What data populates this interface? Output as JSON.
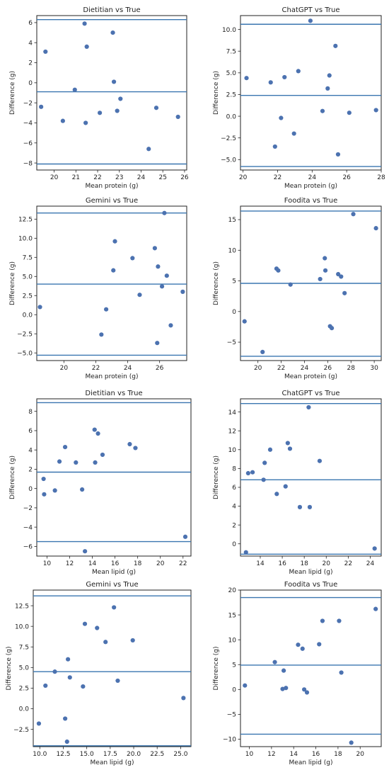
{
  "chart_data": [
    {
      "type": "scatter",
      "title": "Dietitian vs True",
      "xlabel": "Mean protein (g)",
      "ylabel": "Difference (g)",
      "xlim": [
        19.2,
        26.1
      ],
      "ylim": [
        -8.7,
        6.7
      ],
      "xticks": [
        {
          "v": 20,
          "label": "20"
        },
        {
          "v": 21,
          "label": "21"
        },
        {
          "v": 22,
          "label": "22"
        },
        {
          "v": 23,
          "label": "23"
        },
        {
          "v": 24,
          "label": "24"
        },
        {
          "v": 25,
          "label": "25"
        },
        {
          "v": 26,
          "label": "26"
        }
      ],
      "yticks": [
        {
          "v": -8,
          "label": "−8"
        },
        {
          "v": -6,
          "label": "−6"
        },
        {
          "v": -4,
          "label": "−4"
        },
        {
          "v": -2,
          "label": "−2"
        },
        {
          "v": 0,
          "label": "0"
        },
        {
          "v": 2,
          "label": "2"
        },
        {
          "v": 4,
          "label": "4"
        },
        {
          "v": 6,
          "label": "6"
        }
      ],
      "hlines": [
        6.3,
        -0.9,
        -8.1
      ],
      "x": [
        19.4,
        19.6,
        20.4,
        20.95,
        21.4,
        21.45,
        21.5,
        22.1,
        22.7,
        22.75,
        22.9,
        23.05,
        24.35,
        24.7,
        25.7
      ],
      "y": [
        -2.4,
        3.1,
        -3.8,
        -0.7,
        5.9,
        -4.0,
        3.6,
        -3.0,
        5.0,
        0.1,
        -2.8,
        -1.6,
        -6.6,
        -2.5,
        -3.4
      ]
    },
    {
      "type": "scatter",
      "title": "ChatGPT vs True",
      "xlabel": "Mean protein (g)",
      "ylabel": "Difference (g)",
      "xlim": [
        19.85,
        28.0
      ],
      "ylim": [
        -6.2,
        11.6
      ],
      "xticks": [
        {
          "v": 20,
          "label": "20"
        },
        {
          "v": 22,
          "label": "22"
        },
        {
          "v": 24,
          "label": "24"
        },
        {
          "v": 26,
          "label": "26"
        },
        {
          "v": 28,
          "label": "28"
        }
      ],
      "yticks": [
        {
          "v": -5,
          "label": "−5.0"
        },
        {
          "v": -2.5,
          "label": "−2.5"
        },
        {
          "v": 0,
          "label": "0.0"
        },
        {
          "v": 2.5,
          "label": "2.5"
        },
        {
          "v": 5,
          "label": "5.0"
        },
        {
          "v": 7.5,
          "label": "7.5"
        },
        {
          "v": 10,
          "label": "10.0"
        }
      ],
      "hlines": [
        10.6,
        2.4,
        -5.8
      ],
      "x": [
        20.2,
        21.6,
        21.85,
        22.2,
        22.4,
        22.95,
        23.2,
        23.9,
        24.6,
        24.9,
        25.0,
        25.35,
        25.5,
        26.15,
        27.7
      ],
      "y": [
        4.4,
        3.9,
        -3.5,
        -0.2,
        4.5,
        -2.0,
        5.2,
        11.0,
        0.6,
        3.2,
        4.7,
        8.1,
        -4.4,
        0.4,
        0.7
      ]
    },
    {
      "type": "scatter",
      "title": "Gemini vs True",
      "xlabel": "Mean protein (g)",
      "ylabel": "Difference (g)",
      "xlim": [
        18.3,
        27.7
      ],
      "ylim": [
        -6.0,
        14.2
      ],
      "xticks": [
        {
          "v": 20,
          "label": "20"
        },
        {
          "v": 22,
          "label": "22"
        },
        {
          "v": 24,
          "label": "24"
        },
        {
          "v": 26,
          "label": "26"
        }
      ],
      "yticks": [
        {
          "v": -5,
          "label": "−5.0"
        },
        {
          "v": -2.5,
          "label": "−2.5"
        },
        {
          "v": 0,
          "label": "0.0"
        },
        {
          "v": 2.5,
          "label": "2.5"
        },
        {
          "v": 5,
          "label": "5.0"
        },
        {
          "v": 7.5,
          "label": "7.5"
        },
        {
          "v": 10,
          "label": "10.0"
        },
        {
          "v": 12.5,
          "label": "12.5"
        }
      ],
      "hlines": [
        13.3,
        4.0,
        -5.3
      ],
      "x": [
        18.5,
        22.35,
        22.65,
        23.1,
        23.2,
        24.3,
        24.75,
        25.7,
        25.85,
        25.9,
        26.15,
        26.3,
        26.45,
        26.7,
        27.45
      ],
      "y": [
        1.0,
        -2.6,
        0.7,
        5.8,
        9.6,
        7.4,
        2.6,
        8.7,
        -3.7,
        6.3,
        3.7,
        13.3,
        5.1,
        -1.4,
        3.0
      ]
    },
    {
      "type": "scatter",
      "title": "Foodita vs True",
      "xlabel": "Mean protein (g)",
      "ylabel": "Difference (g)",
      "xlim": [
        18.5,
        30.6
      ],
      "ylim": [
        -8.0,
        17.2
      ],
      "xticks": [
        {
          "v": 20,
          "label": "20"
        },
        {
          "v": 22,
          "label": "22"
        },
        {
          "v": 24,
          "label": "24"
        },
        {
          "v": 26,
          "label": "26"
        },
        {
          "v": 28,
          "label": "28"
        },
        {
          "v": 30,
          "label": "30"
        }
      ],
      "yticks": [
        {
          "v": -5,
          "label": "−5"
        },
        {
          "v": 0,
          "label": "0"
        },
        {
          "v": 5,
          "label": "5"
        },
        {
          "v": 10,
          "label": "10"
        },
        {
          "v": 15,
          "label": "15"
        }
      ],
      "hlines": [
        16.4,
        4.6,
        -7.3
      ],
      "x": [
        18.85,
        20.4,
        21.6,
        21.75,
        22.8,
        25.35,
        25.75,
        25.8,
        26.2,
        26.35,
        26.9,
        27.15,
        27.45,
        28.2,
        30.15
      ],
      "y": [
        -1.6,
        -6.6,
        7.0,
        6.7,
        4.4,
        5.3,
        8.7,
        6.7,
        -2.4,
        -2.7,
        6.1,
        5.7,
        3.0,
        15.9,
        13.6
      ]
    },
    {
      "type": "scatter",
      "title": "Dietitian vs True",
      "xlabel": "Mean lipid (g)",
      "ylabel": "Difference (g)",
      "xlim": [
        9.1,
        22.7
      ],
      "ylim": [
        -7.0,
        9.3
      ],
      "xticks": [
        {
          "v": 10,
          "label": "10"
        },
        {
          "v": 12,
          "label": "12"
        },
        {
          "v": 14,
          "label": "14"
        },
        {
          "v": 16,
          "label": "16"
        },
        {
          "v": 18,
          "label": "18"
        },
        {
          "v": 20,
          "label": "20"
        },
        {
          "v": 22,
          "label": "22"
        }
      ],
      "yticks": [
        {
          "v": -6,
          "label": "−6"
        },
        {
          "v": -4,
          "label": "−4"
        },
        {
          "v": -2,
          "label": "−2"
        },
        {
          "v": 0,
          "label": "0"
        },
        {
          "v": 2,
          "label": "2"
        },
        {
          "v": 4,
          "label": "4"
        },
        {
          "v": 6,
          "label": "6"
        },
        {
          "v": 8,
          "label": "8"
        }
      ],
      "hlines": [
        8.9,
        1.7,
        -5.5
      ],
      "x": [
        9.7,
        9.75,
        10.7,
        11.1,
        11.6,
        12.55,
        13.1,
        13.35,
        14.2,
        14.25,
        14.5,
        14.9,
        17.3,
        17.8,
        22.2
      ],
      "y": [
        1.0,
        -0.6,
        -0.2,
        2.8,
        4.3,
        2.7,
        -0.1,
        -6.5,
        6.1,
        2.7,
        5.7,
        3.5,
        4.6,
        4.2,
        -5.0
      ]
    },
    {
      "type": "scatter",
      "title": "ChatGPT vs True",
      "xlabel": "Mean lipid (g)",
      "ylabel": "Difference (g)",
      "xlim": [
        12.2,
        25.0
      ],
      "ylim": [
        -1.3,
        15.4
      ],
      "xticks": [
        {
          "v": 14,
          "label": "14"
        },
        {
          "v": 16,
          "label": "16"
        },
        {
          "v": 18,
          "label": "18"
        },
        {
          "v": 20,
          "label": "20"
        },
        {
          "v": 22,
          "label": "22"
        },
        {
          "v": 24,
          "label": "24"
        }
      ],
      "yticks": [
        {
          "v": 0,
          "label": "0"
        },
        {
          "v": 2,
          "label": "2"
        },
        {
          "v": 4,
          "label": "4"
        },
        {
          "v": 6,
          "label": "6"
        },
        {
          "v": 8,
          "label": "8"
        },
        {
          "v": 10,
          "label": "10"
        },
        {
          "v": 12,
          "label": "12"
        },
        {
          "v": 14,
          "label": "14"
        }
      ],
      "hlines": [
        14.9,
        6.8,
        -1.1
      ],
      "x": [
        12.7,
        12.9,
        13.3,
        14.3,
        14.4,
        14.9,
        15.5,
        16.3,
        16.5,
        16.7,
        17.6,
        18.4,
        18.5,
        19.4,
        24.4
      ],
      "y": [
        -0.9,
        7.5,
        7.6,
        6.8,
        8.6,
        10.0,
        5.3,
        6.1,
        10.7,
        10.1,
        3.9,
        14.5,
        3.9,
        8.8,
        -0.5
      ]
    },
    {
      "type": "scatter",
      "title": "Gemini vs True",
      "xlabel": "Mean lipid (g)",
      "ylabel": "Difference (g)",
      "xlim": [
        9.3,
        26.1
      ],
      "ylim": [
        -4.6,
        14.4
      ],
      "xticks": [
        {
          "v": 10,
          "label": "10.0"
        },
        {
          "v": 12.5,
          "label": "12.5"
        },
        {
          "v": 15,
          "label": "15.0"
        },
        {
          "v": 17.5,
          "label": "17.5"
        },
        {
          "v": 20,
          "label": "20.0"
        },
        {
          "v": 22.5,
          "label": "22.5"
        },
        {
          "v": 25,
          "label": "25.0"
        }
      ],
      "yticks": [
        {
          "v": -2.5,
          "label": "−2.5"
        },
        {
          "v": 0,
          "label": "0.0"
        },
        {
          "v": 2.5,
          "label": "2.5"
        },
        {
          "v": 5,
          "label": "5.0"
        },
        {
          "v": 7.5,
          "label": "7.5"
        },
        {
          "v": 10,
          "label": "10.0"
        },
        {
          "v": 12.5,
          "label": "12.5"
        }
      ],
      "hlines": [
        13.7,
        4.5,
        -4.5
      ],
      "x": [
        9.9,
        10.6,
        11.6,
        12.7,
        13.0,
        13.2,
        14.6,
        14.8,
        16.1,
        17.0,
        17.9,
        18.3,
        19.9,
        25.3,
        12.9
      ],
      "y": [
        -1.8,
        2.8,
        4.5,
        -1.2,
        6.0,
        3.8,
        2.7,
        10.3,
        9.8,
        8.1,
        12.3,
        3.4,
        8.3,
        1.3,
        -4.0
      ]
    },
    {
      "type": "scatter",
      "title": "Foodita vs True",
      "xlabel": "Mean lipid (g)",
      "ylabel": "Difference (g)",
      "xlim": [
        9.2,
        21.9
      ],
      "ylim": [
        -11.5,
        20.0
      ],
      "xticks": [
        {
          "v": 10,
          "label": "10"
        },
        {
          "v": 12,
          "label": "12"
        },
        {
          "v": 14,
          "label": "14"
        },
        {
          "v": 16,
          "label": "16"
        },
        {
          "v": 18,
          "label": "18"
        },
        {
          "v": 20,
          "label": "20"
        }
      ],
      "yticks": [
        {
          "v": -10,
          "label": "−10"
        },
        {
          "v": -5,
          "label": "−5"
        },
        {
          "v": 0,
          "label": "0"
        },
        {
          "v": 5,
          "label": "5"
        },
        {
          "v": 10,
          "label": "10"
        },
        {
          "v": 15,
          "label": "15"
        },
        {
          "v": 20,
          "label": "20"
        }
      ],
      "hlines": [
        18.5,
        4.9,
        -9.0
      ],
      "x": [
        9.6,
        12.3,
        13.0,
        13.1,
        13.3,
        14.4,
        14.8,
        14.95,
        15.2,
        16.3,
        16.6,
        18.1,
        18.3,
        19.2,
        21.4
      ],
      "y": [
        0.8,
        5.5,
        0.1,
        3.8,
        0.3,
        9.0,
        8.2,
        0.0,
        -0.6,
        9.1,
        13.8,
        13.8,
        3.4,
        -10.7,
        16.2
      ]
    }
  ],
  "style": {
    "series_color": "#4c72b0",
    "line_color": "#3a76b0",
    "axis_color": "#222222"
  }
}
